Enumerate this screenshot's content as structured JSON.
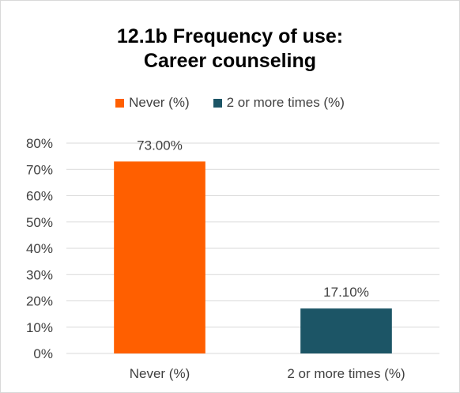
{
  "chart_data": {
    "type": "bar",
    "title": "12.1b   Frequency of use:\nCareer counseling",
    "categories": [
      "Never (%)",
      "2 or more times (%)"
    ],
    "values": [
      73.0,
      17.1
    ],
    "data_labels": [
      "73.00%",
      "17.10%"
    ],
    "colors": [
      "#ff5f00",
      "#1c5566"
    ],
    "ylim": [
      0,
      80
    ],
    "yticks": [
      "0%",
      "10%",
      "20%",
      "30%",
      "40%",
      "50%",
      "60%",
      "70%",
      "80%"
    ],
    "grid": true,
    "legend": {
      "position": "top",
      "entries": [
        "Never (%)",
        "2 or more times (%)"
      ]
    }
  }
}
